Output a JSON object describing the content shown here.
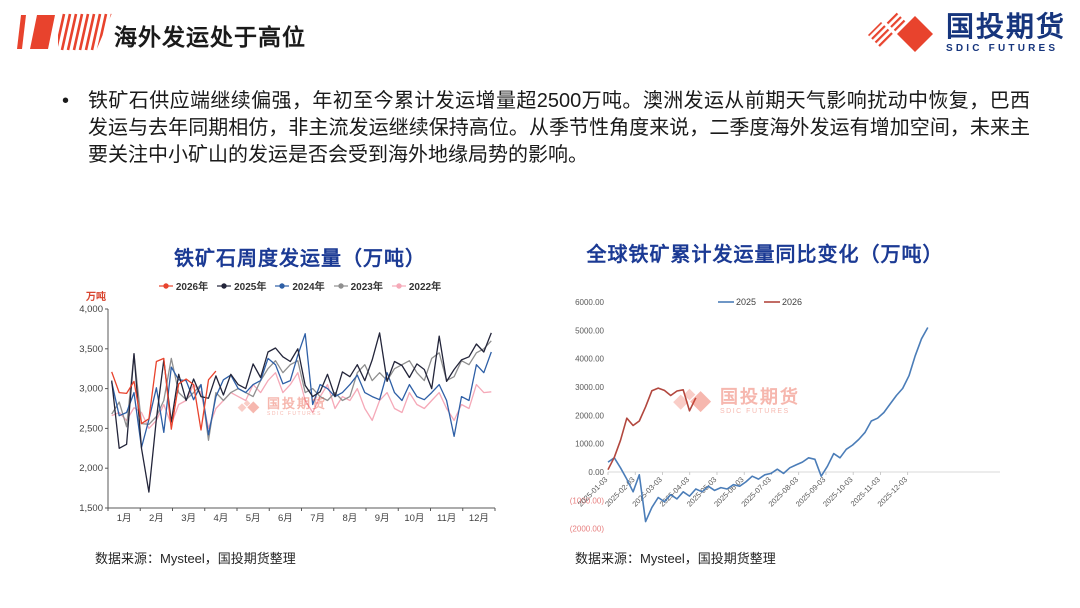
{
  "header": {
    "title": "海外发运处于高位",
    "logo_cn": "国投期货",
    "logo_en": "SDIC FUTURES"
  },
  "bullet": {
    "symbol": "•",
    "text": "铁矿石供应端继续偏强，年初至今累计发运增量超2500万吨。澳洲发运从前期天气影响扰动中恢复，巴西发运与去年同期相仿，非主流发运继续保持高位。从季节性角度来说，二季度海外发运有增加空间，未来主要关注中小矿山的发运是否会受到海外地缘局势的影响。"
  },
  "captions": {
    "left": "数据来源：Mysteel，国投期货整理",
    "right": "数据来源：Mysteel，国投期货整理"
  },
  "watermark": {
    "cn": "国投期货",
    "en": "SDIC FUTURES"
  },
  "colors": {
    "brand_red": "#e8432d",
    "brand_navy": "#16357d",
    "chart_title_blue": "#1b3a94",
    "axis_text": "#404040",
    "neg_label_red": "#e77f7f",
    "zero_grid": "#d9d9d9"
  },
  "chart_data": [
    {
      "type": "line",
      "title": "铁矿石周度发运量（万吨）",
      "ylabel": "万吨",
      "ylim": [
        1500,
        4000
      ],
      "ytick_step": 500,
      "grid": false,
      "legend_position": "top",
      "x_mode": "weekly-seasonal",
      "categories": [
        "1月",
        "2月",
        "3月",
        "4月",
        "5月",
        "6月",
        "7月",
        "8月",
        "9月",
        "10月",
        "11月",
        "12月"
      ],
      "weeks_per_year": 52,
      "series": [
        {
          "name": "2022年",
          "color": "#f5a9b8",
          "values": [
            2660,
            2700,
            2600,
            2760,
            2700,
            2500,
            2600,
            2800,
            2550,
            2800,
            2850,
            3050,
            2950,
            2500,
            2750,
            2850,
            2950,
            2900,
            2850,
            3050,
            2950,
            3100,
            3200,
            2950,
            3050,
            3200,
            2850,
            2700,
            2900,
            3050,
            2750,
            2900,
            2850,
            3000,
            2750,
            2600,
            2850,
            2950,
            2750,
            2700,
            2950,
            2800,
            2750,
            2850,
            2950,
            2750,
            2600,
            2800,
            2750,
            3050,
            2950,
            2960
          ]
        },
        {
          "name": "2023年",
          "color": "#8f8f8f",
          "values": [
            2680,
            2830,
            2520,
            3430,
            2560,
            2550,
            2650,
            2850,
            3380,
            2950,
            2860,
            2950,
            3050,
            2350,
            2950,
            2850,
            2950,
            3000,
            2950,
            2900,
            3100,
            3250,
            3350,
            3200,
            3300,
            3350,
            2950,
            3000,
            2900,
            2850,
            2950,
            2850,
            2900,
            3200,
            3300,
            3100,
            3200,
            3100,
            3250,
            3300,
            3350,
            3200,
            3100,
            3380,
            3450,
            3100,
            3150,
            3350,
            3300,
            3450,
            3500,
            3600
          ]
        },
        {
          "name": "2024年",
          "color": "#2e5fa6",
          "values": [
            3080,
            2660,
            2700,
            2950,
            2260,
            2610,
            3010,
            2450,
            3270,
            3110,
            3100,
            2860,
            3050,
            2420,
            2900,
            3110,
            3170,
            3000,
            2950,
            3050,
            3100,
            3380,
            3300,
            3060,
            3100,
            3420,
            3690,
            2800,
            3050,
            3000,
            2900,
            2950,
            3050,
            3170,
            2950,
            2900,
            2860,
            3200,
            2950,
            2850,
            3050,
            2900,
            2860,
            2950,
            3050,
            2850,
            2400,
            2900,
            2850,
            3300,
            3200,
            3460
          ]
        },
        {
          "name": "2025年",
          "color": "#23253a",
          "values": [
            3100,
            2250,
            2300,
            3440,
            2250,
            1700,
            2620,
            3360,
            2580,
            3180,
            2850,
            3120,
            2900,
            2880,
            3160,
            2920,
            3180,
            3050,
            3000,
            3310,
            3140,
            3460,
            3510,
            3400,
            3340,
            3500,
            3040,
            2900,
            2960,
            3180,
            2900,
            3210,
            3150,
            3300,
            3100,
            3360,
            3700,
            3090,
            3340,
            3290,
            3140,
            3310,
            3240,
            3000,
            3660,
            3090,
            3240,
            3360,
            3400,
            3560,
            3460,
            3700
          ]
        },
        {
          "name": "2026年",
          "color": "#e8432d",
          "values": [
            3210,
            2950,
            2940,
            3090,
            2560,
            2620,
            3340,
            3380,
            2490,
            3060,
            3120,
            3050,
            2480,
            3110,
            3220
          ]
        }
      ],
      "legend_order": [
        "2026年",
        "2025年",
        "2024年",
        "2023年",
        "2022年"
      ]
    },
    {
      "type": "line",
      "title": "全球铁矿累计发运量同比变化（万吨）",
      "ylim": [
        -2000,
        6000
      ],
      "ytick_step": 1000,
      "ytick_labels": [
        "6000.00",
        "5000.00",
        "4000.00",
        "3000.00",
        "2000.00",
        "1000.00",
        "0.00",
        "(1000.00)",
        "(2000.00)"
      ],
      "ytick_values": [
        6000,
        5000,
        4000,
        3000,
        2000,
        1000,
        0,
        -1000,
        -2000
      ],
      "grid": "zero-line-only",
      "legend_position": "top-right",
      "x_tick_labels": [
        "2025-01-03",
        "2025-02-03",
        "2025-03-03",
        "2025-04-03",
        "2025-05-03",
        "2025-06-03",
        "2025-07-03",
        "2025-08-03",
        "2025-09-03",
        "2025-10-03",
        "2025-11-03",
        "2025-12-03"
      ],
      "series": [
        {
          "name": "2025",
          "color": "#4b7db8",
          "values": [
            350,
            500,
            150,
            -250,
            -700,
            -100,
            -1750,
            -1250,
            -900,
            -1050,
            -800,
            -950,
            -700,
            -850,
            -600,
            -700,
            -500,
            -650,
            -550,
            -600,
            -450,
            -500,
            -350,
            -150,
            -250,
            -100,
            -50,
            100,
            -50,
            150,
            250,
            350,
            500,
            450,
            -150,
            200,
            650,
            500,
            800,
            950,
            1150,
            1400,
            1800,
            1900,
            2100,
            2400,
            2700,
            2950,
            3400,
            4100,
            4700,
            5100
          ]
        },
        {
          "name": "2026",
          "color": "#b2473e",
          "values": [
            80,
            520,
            1120,
            1900,
            1640,
            1800,
            2300,
            2870,
            2960,
            2880,
            2700,
            2860,
            2900,
            2160,
            2620
          ]
        }
      ]
    }
  ]
}
